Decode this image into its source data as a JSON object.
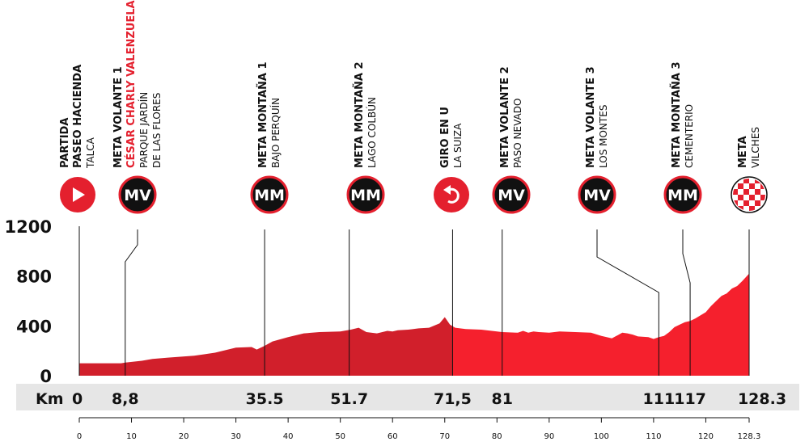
{
  "chart_data": {
    "type": "area",
    "xlim": [
      0,
      128.3
    ],
    "ylim": [
      0,
      1200
    ],
    "y_ticks": [
      "1200",
      "800",
      "400",
      "0"
    ],
    "y_tick_values": [
      1200,
      800,
      400,
      0
    ],
    "x_ticks": [
      "0",
      "10",
      "20",
      "30",
      "40",
      "50",
      "60",
      "70",
      "80",
      "90",
      "100",
      "110",
      "120",
      "128.3"
    ],
    "x_tick_values": [
      0,
      10,
      20,
      30,
      40,
      50,
      60,
      70,
      80,
      90,
      100,
      110,
      120,
      128.3
    ],
    "km_band_label": "Km",
    "series": [
      {
        "x": [
          0,
          4,
          8,
          8.8,
          12,
          14,
          17,
          22,
          26,
          30,
          33,
          34,
          35.5,
          37,
          40,
          43,
          46,
          50,
          52,
          53.5,
          55,
          57,
          59,
          60,
          61,
          63,
          65,
          67,
          69,
          70,
          71,
          72,
          74,
          77,
          80,
          81,
          84,
          85,
          86,
          87,
          88,
          90,
          92,
          95,
          98,
          100,
          102,
          104,
          105,
          106,
          107,
          109,
          110,
          111,
          112,
          113,
          114,
          115,
          116,
          117,
          118,
          120,
          121,
          122,
          123,
          124,
          125,
          126,
          127,
          128.3
        ],
        "y": [
          100,
          100,
          100,
          105,
          120,
          135,
          145,
          160,
          185,
          225,
          230,
          210,
          240,
          275,
          310,
          340,
          350,
          355,
          370,
          385,
          350,
          340,
          360,
          355,
          365,
          370,
          380,
          385,
          420,
          470,
          410,
          385,
          375,
          370,
          355,
          350,
          345,
          360,
          345,
          355,
          350,
          345,
          355,
          350,
          345,
          320,
          300,
          345,
          340,
          330,
          315,
          310,
          295,
          310,
          320,
          350,
          390,
          410,
          430,
          440,
          460,
          510,
          560,
          600,
          640,
          660,
          700,
          720,
          760,
          820
        ]
      }
    ],
    "waypoints": [
      {
        "lines": [
          "PARTIDA",
          "PASEO HACIENDA"
        ],
        "sub": [
          "TALCA"
        ],
        "badge": "start",
        "km": 0
      },
      {
        "lines": [
          "META VOLANTE 1"
        ],
        "red": "CÉSAR CHARLY VALENZUELA",
        "sub": [
          "PARQUE JARDÍN",
          "DE LAS FLORES"
        ],
        "badge": "MV",
        "km": 8.8
      },
      {
        "lines": [
          "META MONTAÑA 1"
        ],
        "sub": [
          "BAJO PERQUÍN"
        ],
        "badge": "MM",
        "km": 35.5
      },
      {
        "lines": [
          "META MONTAÑA 2"
        ],
        "sub": [
          "LAGO COLBÚN"
        ],
        "badge": "MM",
        "km": 51.7
      },
      {
        "lines": [
          "GIRO EN U"
        ],
        "sub": [
          "LA SUIZA"
        ],
        "badge": "uturn",
        "km": 71.5
      },
      {
        "lines": [
          "META VOLANTE 2"
        ],
        "sub": [
          "PASO NEVADO"
        ],
        "badge": "MV",
        "km": 81
      },
      {
        "lines": [
          "META VOLANTE 3"
        ],
        "sub": [
          "LOS MONTES"
        ],
        "badge": "MV",
        "km": 111
      },
      {
        "lines": [
          "META MONTAÑA 3"
        ],
        "sub": [
          "CEMENTERIO"
        ],
        "badge": "MM",
        "km": 117
      },
      {
        "lines": [
          "META"
        ],
        "sub": [
          "VILCHES"
        ],
        "badge": "finish",
        "km": 128.3
      }
    ],
    "km_labels": [
      {
        "text": "0",
        "km": 0
      },
      {
        "text": "8,8",
        "km": 8.8
      },
      {
        "text": "35.5",
        "km": 35.5
      },
      {
        "text": "51.7",
        "km": 51.7
      },
      {
        "text": "71,5",
        "km": 71.5
      },
      {
        "text": "81",
        "km": 81
      },
      {
        "text": "111",
        "km": 111
      },
      {
        "text": "117",
        "km": 117
      },
      {
        "text": "128.3",
        "km": 128.3
      }
    ],
    "colors": {
      "profile_before_uturn": "#d11f2b",
      "profile_after_uturn": "#f5202d",
      "badge_fill": "#111111",
      "badge_ring": "#e4202e",
      "km_band": "#e6e6e6",
      "accent": "#e4202e"
    }
  }
}
